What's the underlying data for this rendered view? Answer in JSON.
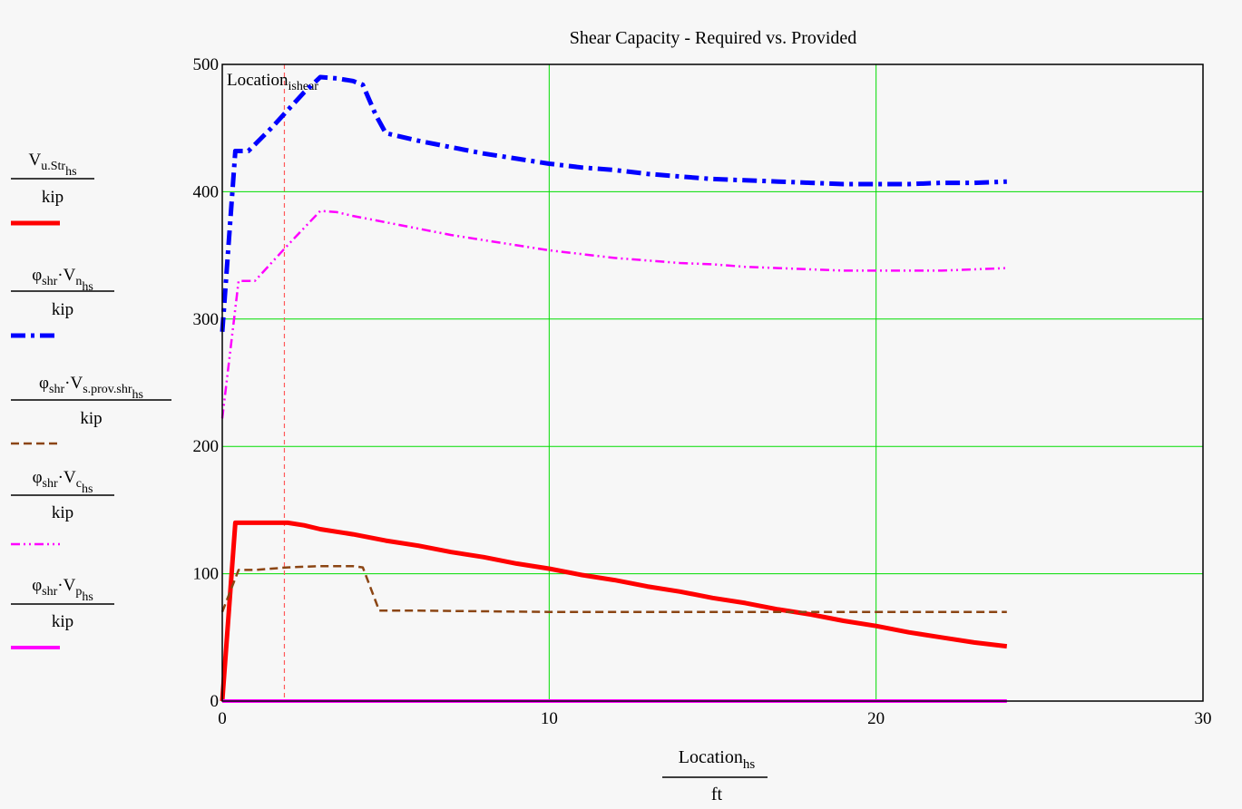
{
  "chart_data": {
    "type": "line",
    "title": "Shear Capacity - Required vs. Provided",
    "xlabel": {
      "main": "Location",
      "sub": "hs",
      "unit": "ft"
    },
    "xlim": [
      0,
      30
    ],
    "ylim": [
      0,
      500
    ],
    "x_ticks": [
      0,
      10,
      20,
      30
    ],
    "y_ticks": [
      0,
      100,
      200,
      300,
      400,
      500
    ],
    "grid": true,
    "grid_color": "#00dd00",
    "legend_position": "left",
    "marker": {
      "label": "Location",
      "sub": "ishear",
      "x": 1.9,
      "color": "#ff5a5a"
    },
    "series": [
      {
        "key": "vu",
        "legend": {
          "pre": "",
          "main": "V",
          "sub": "u.Str",
          "subsub": "hs",
          "unit": "kip"
        },
        "color": "#ff0000",
        "width": 5,
        "dash": "",
        "points": [
          [
            0,
            0
          ],
          [
            0.4,
            140
          ],
          [
            1,
            140
          ],
          [
            2,
            140
          ],
          [
            2.5,
            138
          ],
          [
            3,
            135
          ],
          [
            4,
            131
          ],
          [
            5,
            126
          ],
          [
            6,
            122
          ],
          [
            7,
            117
          ],
          [
            8,
            113
          ],
          [
            9,
            108
          ],
          [
            10,
            104
          ],
          [
            11,
            99
          ],
          [
            12,
            95
          ],
          [
            13,
            90
          ],
          [
            14,
            86
          ],
          [
            15,
            81
          ],
          [
            16,
            77
          ],
          [
            17,
            72
          ],
          [
            18,
            68
          ],
          [
            19,
            63
          ],
          [
            20,
            59
          ],
          [
            21,
            54
          ],
          [
            22,
            50
          ],
          [
            23,
            46
          ],
          [
            24,
            43
          ]
        ]
      },
      {
        "key": "vn",
        "legend": {
          "pre": "φ",
          "presub": "shr",
          "main": "V",
          "sub": "n",
          "subsub": "hs",
          "unit": "kip"
        },
        "color": "#0000ff",
        "width": 5,
        "dash": "16,6,4,6",
        "points": [
          [
            0,
            290
          ],
          [
            0.4,
            432
          ],
          [
            0.8,
            432
          ],
          [
            1.5,
            450
          ],
          [
            2.5,
            478
          ],
          [
            3,
            490
          ],
          [
            3.5,
            489
          ],
          [
            4,
            487
          ],
          [
            4.3,
            484
          ],
          [
            4.7,
            460
          ],
          [
            5,
            446
          ],
          [
            6,
            440
          ],
          [
            7,
            435
          ],
          [
            8,
            430
          ],
          [
            9,
            426
          ],
          [
            10,
            422
          ],
          [
            11,
            419
          ],
          [
            12,
            417
          ],
          [
            13,
            414
          ],
          [
            14,
            412
          ],
          [
            15,
            410
          ],
          [
            16,
            409
          ],
          [
            17,
            408
          ],
          [
            18,
            407
          ],
          [
            19,
            406
          ],
          [
            20,
            406
          ],
          [
            21,
            406
          ],
          [
            22,
            407
          ],
          [
            23,
            407
          ],
          [
            24,
            408
          ]
        ]
      },
      {
        "key": "vs",
        "legend": {
          "pre": "φ",
          "presub": "shr",
          "main": "V",
          "sub": "s.prov.shr",
          "subsub": "hs",
          "unit": "kip"
        },
        "color": "#8b4513",
        "width": 2.5,
        "dash": "9,5",
        "points": [
          [
            0,
            70
          ],
          [
            0.5,
            103
          ],
          [
            1,
            103
          ],
          [
            2,
            105
          ],
          [
            3,
            106
          ],
          [
            4,
            106
          ],
          [
            4.3,
            105
          ],
          [
            4.8,
            71
          ],
          [
            6,
            71
          ],
          [
            10,
            70
          ],
          [
            15,
            70
          ],
          [
            20,
            70
          ],
          [
            24,
            70
          ]
        ]
      },
      {
        "key": "vc",
        "legend": {
          "pre": "φ",
          "presub": "shr",
          "main": "V",
          "sub": "c",
          "subsub": "hs",
          "unit": "kip"
        },
        "color": "#ff00ff",
        "width": 2.5,
        "dash": "10,4,2,4,2,4",
        "points": [
          [
            0,
            222
          ],
          [
            0.5,
            330
          ],
          [
            1,
            330
          ],
          [
            2,
            358
          ],
          [
            3,
            385
          ],
          [
            3.5,
            384
          ],
          [
            4,
            381
          ],
          [
            5,
            376
          ],
          [
            6,
            371
          ],
          [
            7,
            366
          ],
          [
            8,
            362
          ],
          [
            9,
            358
          ],
          [
            10,
            354
          ],
          [
            11,
            351
          ],
          [
            12,
            348
          ],
          [
            13,
            346
          ],
          [
            14,
            344
          ],
          [
            15,
            343
          ],
          [
            16,
            341
          ],
          [
            17,
            340
          ],
          [
            18,
            339
          ],
          [
            19,
            338
          ],
          [
            20,
            338
          ],
          [
            21,
            338
          ],
          [
            22,
            338
          ],
          [
            23,
            339
          ],
          [
            24,
            340
          ]
        ]
      },
      {
        "key": "vp",
        "legend": {
          "pre": "φ",
          "presub": "shr",
          "main": "V",
          "sub": "p",
          "subsub": "hs",
          "unit": "kip"
        },
        "color": "#ff00ff",
        "width": 4,
        "dash": "",
        "points": [
          [
            0,
            0
          ],
          [
            24,
            0
          ]
        ]
      }
    ]
  }
}
